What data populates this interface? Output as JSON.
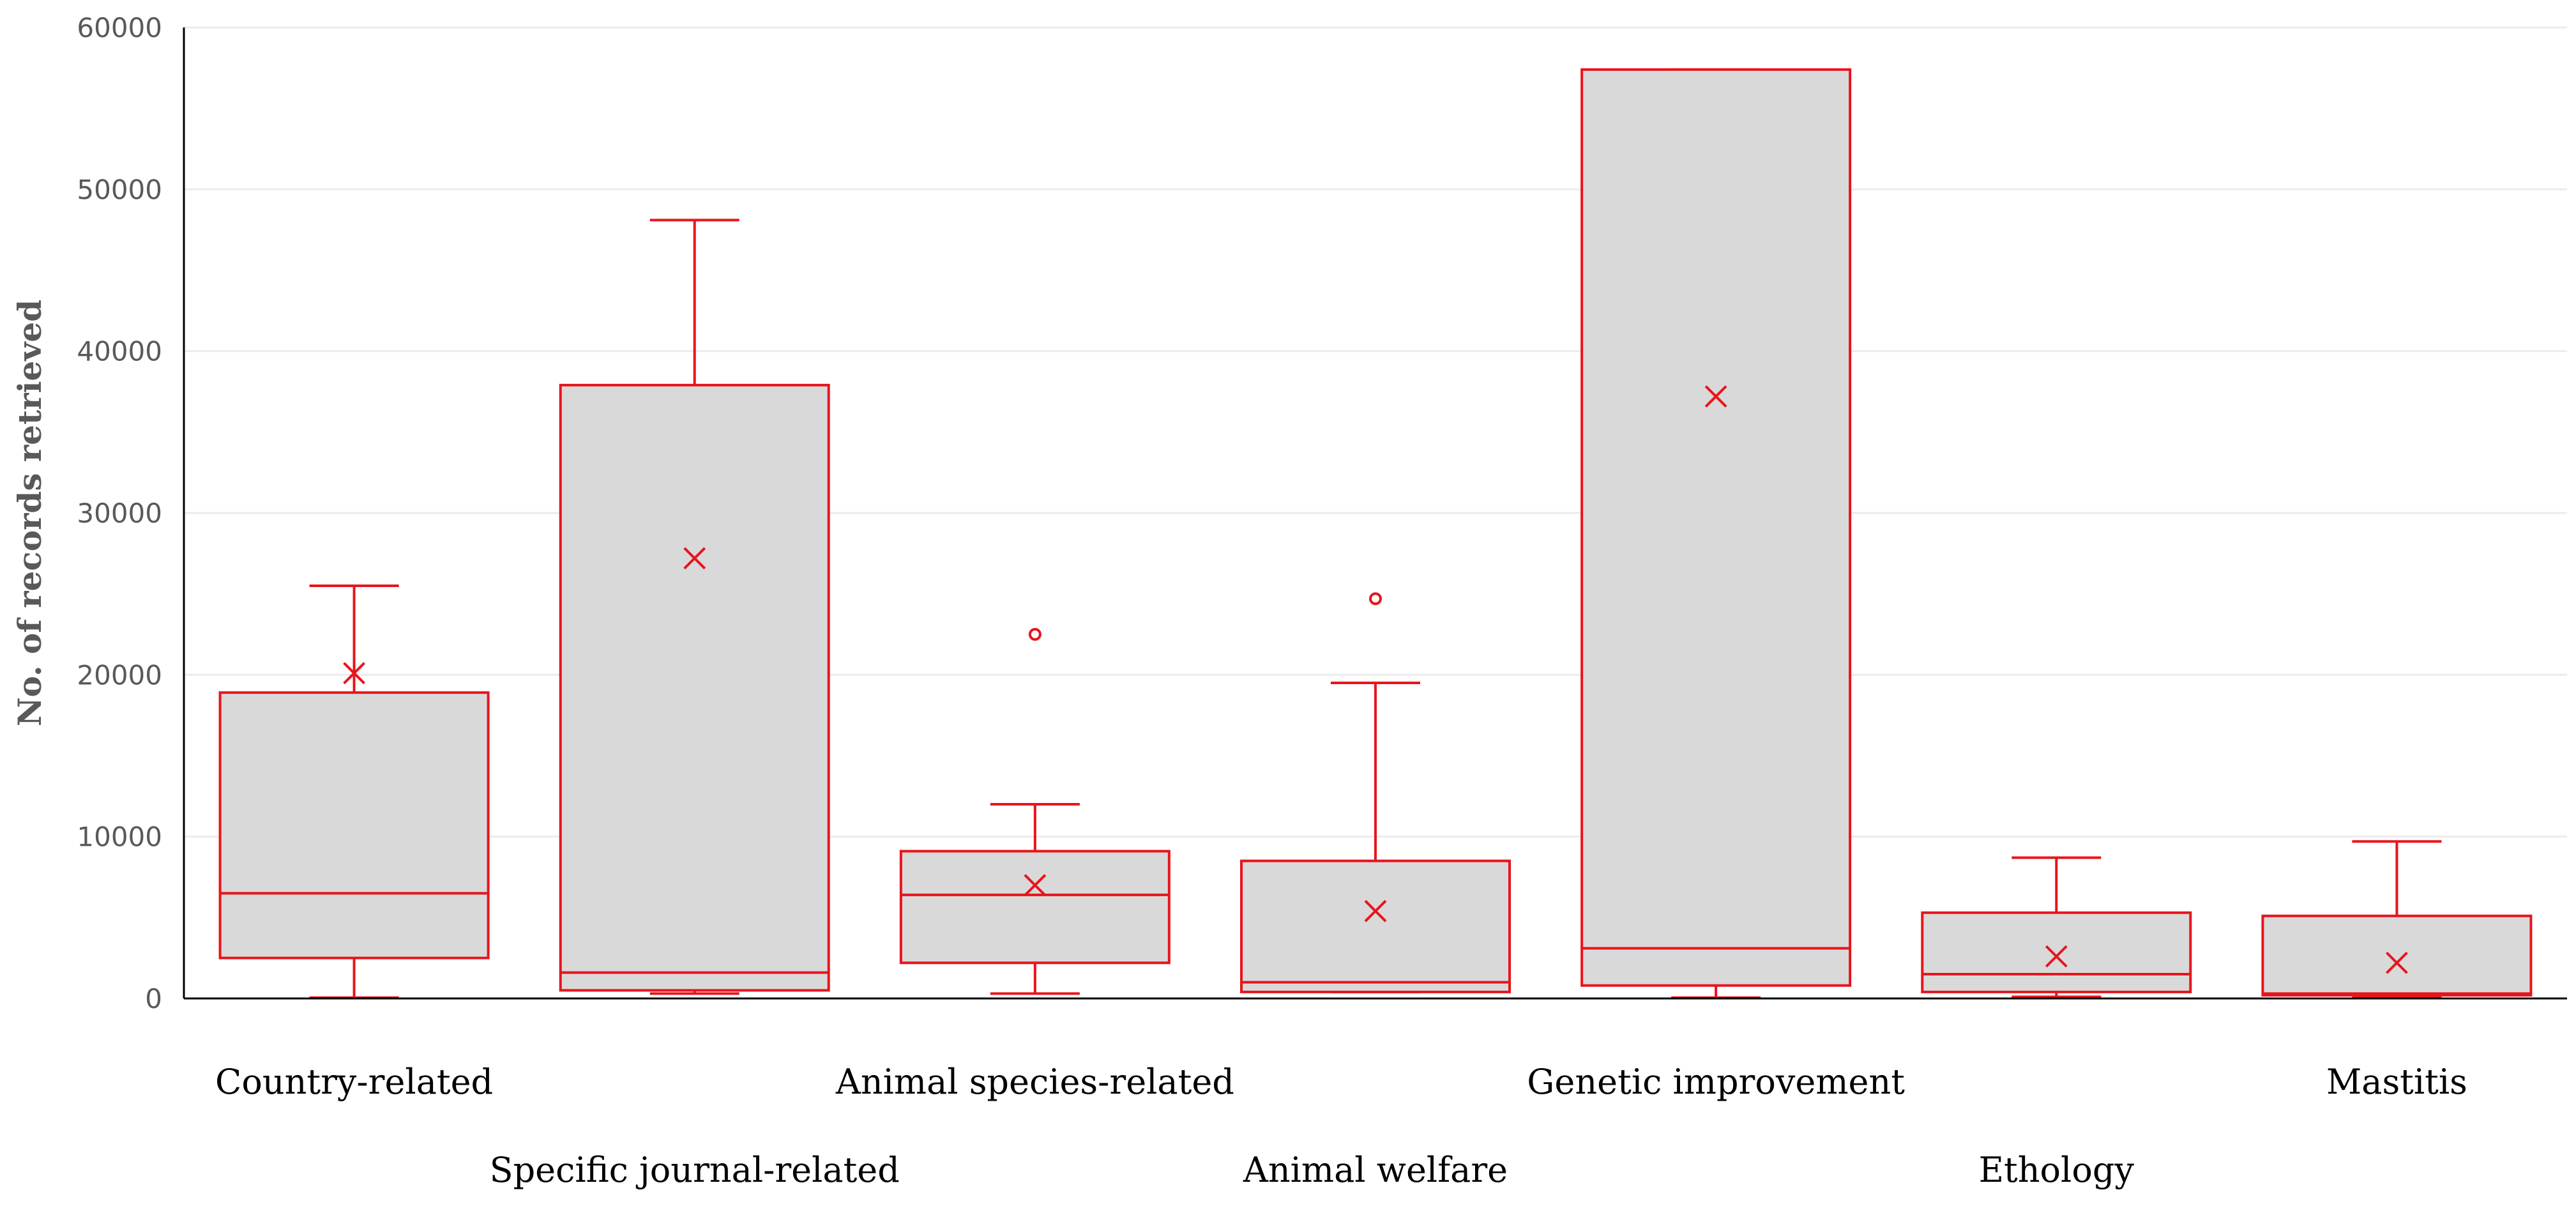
{
  "chart_data": {
    "type": "boxplot",
    "title": "",
    "xlabel": "",
    "ylabel": "No. of records retrieved",
    "ylim": [
      0,
      60000
    ],
    "yticks": [
      0,
      10000,
      20000,
      30000,
      40000,
      50000,
      60000
    ],
    "grid": true,
    "colors": {
      "stroke": "#e8141c",
      "fill": "#d9d9d9",
      "axis": "#000000",
      "grid": "#ececec"
    },
    "categories": [
      "Country-related",
      "Specific journal-related",
      "Animal species-related",
      "Animal welfare",
      "Genetic improvement",
      "Ethology",
      "Mastitis"
    ],
    "boxes": [
      {
        "category": "Country-related",
        "whisker_low": 50,
        "q1": 2500,
        "median": 6500,
        "q3": 18900,
        "whisker_high": 25500,
        "mean": 20100,
        "outliers": []
      },
      {
        "category": "Specific journal-related",
        "whisker_low": 300,
        "q1": 500,
        "median": 1600,
        "q3": 37900,
        "whisker_high": 48100,
        "mean": 27200,
        "outliers": []
      },
      {
        "category": "Animal species-related",
        "whisker_low": 300,
        "q1": 2200,
        "median": 6400,
        "q3": 9100,
        "whisker_high": 12000,
        "mean": 7000,
        "outliers": [
          22500
        ]
      },
      {
        "category": "Animal welfare",
        "whisker_low": 400,
        "q1": 400,
        "median": 1000,
        "q3": 8500,
        "whisker_high": 19500,
        "mean": 5400,
        "outliers": [
          24700
        ]
      },
      {
        "category": "Genetic improvement",
        "whisker_low": 50,
        "q1": 800,
        "median": 3100,
        "q3": 57400,
        "whisker_high": 57400,
        "mean": 37200,
        "outliers": []
      },
      {
        "category": "Ethology",
        "whisker_low": 100,
        "q1": 400,
        "median": 1500,
        "q3": 5300,
        "whisker_high": 8700,
        "mean": 2600,
        "outliers": []
      },
      {
        "category": "Mastitis",
        "whisker_low": 50,
        "q1": 200,
        "median": 300,
        "q3": 5100,
        "whisker_high": 9700,
        "mean": 2200,
        "outliers": []
      }
    ]
  }
}
